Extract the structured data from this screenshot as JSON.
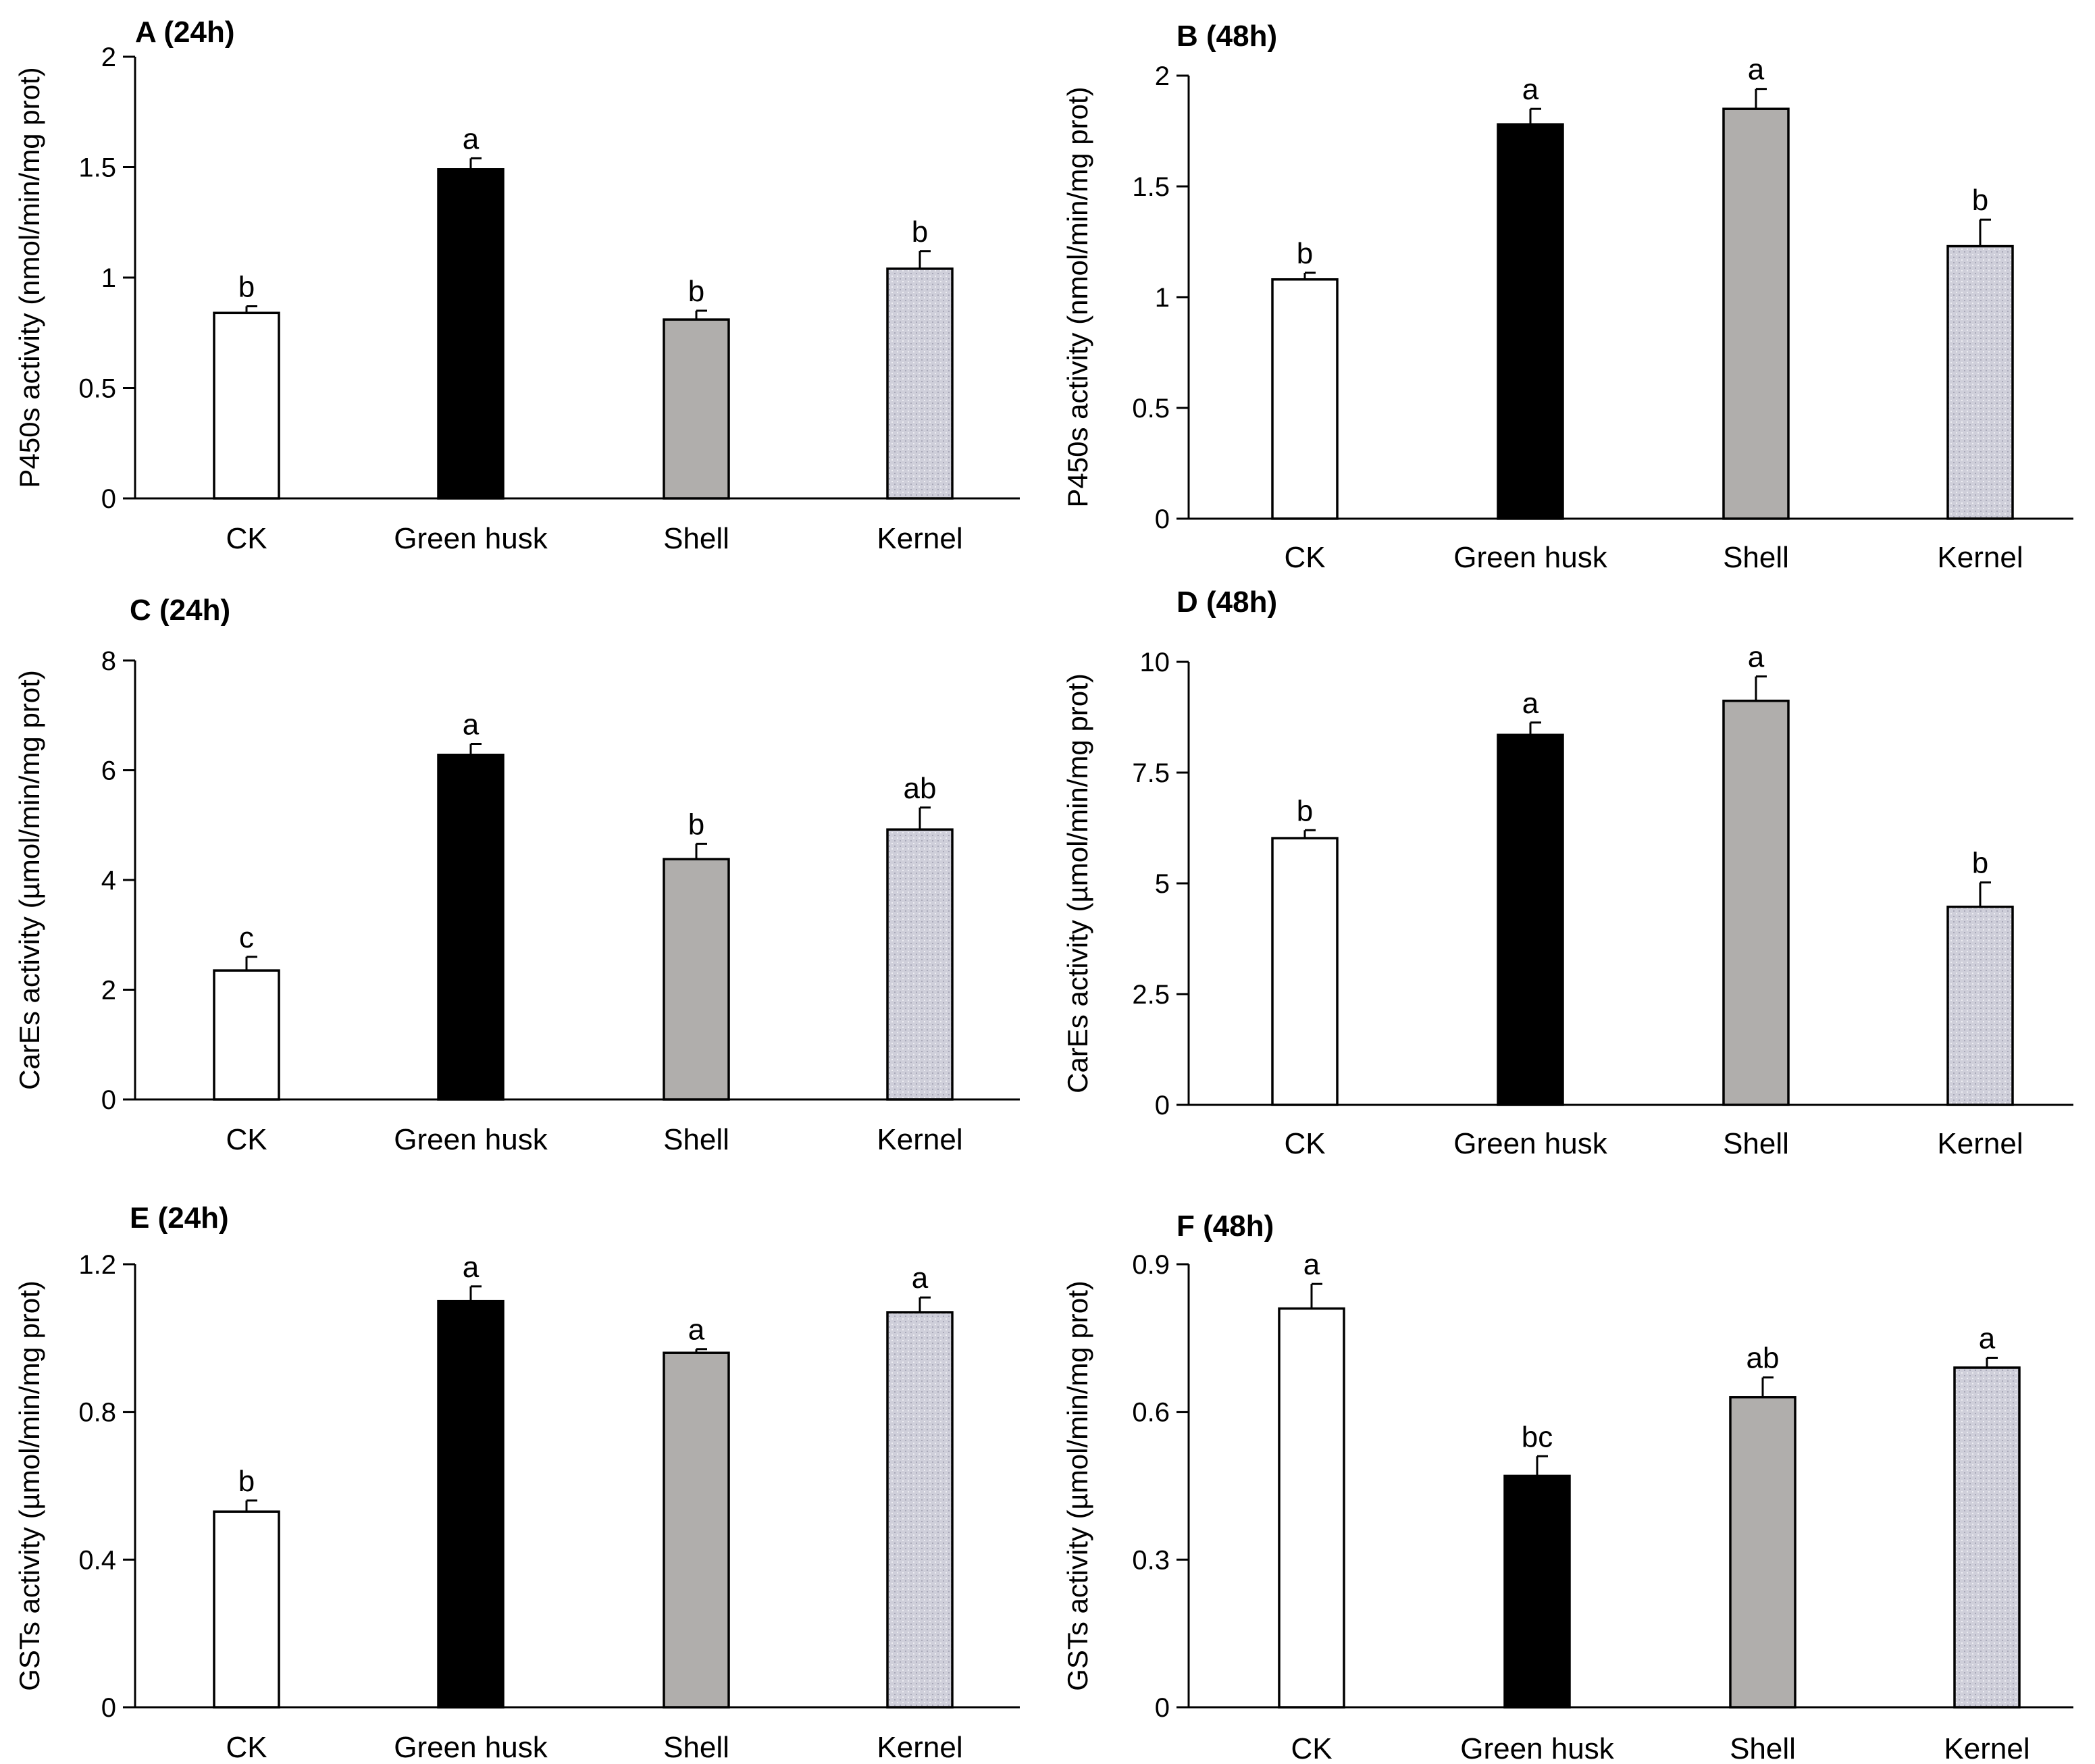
{
  "figure": {
    "colors": {
      "CK": "#ffffff",
      "Green husk": "#000000",
      "Shell": "#b0aeac",
      "Kernel": "#cfcfda"
    }
  },
  "chart_data": [
    {
      "type": "bar",
      "title": "A (24h)",
      "ylabel": "P450s activity (nmol/min/mg prot)",
      "categories": [
        "CK",
        "Green husk",
        "Shell",
        "Kernel"
      ],
      "values": [
        0.84,
        1.49,
        0.81,
        1.04
      ],
      "errors": [
        0.03,
        0.05,
        0.04,
        0.08
      ],
      "letters": [
        "b",
        "a",
        "b",
        "b"
      ],
      "ylim": [
        0,
        2
      ],
      "yticks": [
        0,
        0.5,
        1,
        1.5,
        2
      ],
      "ytick_labels": [
        "0",
        "0.5",
        "1",
        "1.5",
        "2"
      ]
    },
    {
      "type": "bar",
      "title": "B (48h)",
      "ylabel": "P450s activity  (nmol/min/mg prot)",
      "categories": [
        "CK",
        "Green husk",
        "Shell",
        "Kernel"
      ],
      "values": [
        1.08,
        1.78,
        1.85,
        1.23
      ],
      "errors": [
        0.03,
        0.07,
        0.09,
        0.12
      ],
      "letters": [
        "b",
        "a",
        "a",
        "b"
      ],
      "ylim": [
        0,
        2
      ],
      "yticks": [
        0,
        0.5,
        1,
        1.5,
        2
      ],
      "ytick_labels": [
        "0",
        "0.5",
        "1",
        "1.5",
        "2"
      ]
    },
    {
      "type": "bar",
      "title": "C  (24h)",
      "ylabel": "CarEs activity (µmol/min/mg prot)",
      "categories": [
        "CK",
        "Green husk",
        "Shell",
        "Kernel"
      ],
      "values": [
        2.35,
        6.28,
        4.38,
        4.92
      ],
      "errors": [
        0.25,
        0.2,
        0.28,
        0.4
      ],
      "letters": [
        "c",
        "a",
        "b",
        "ab"
      ],
      "ylim": [
        0,
        8
      ],
      "yticks": [
        0,
        2,
        4,
        6,
        8
      ],
      "ytick_labels": [
        "0",
        "2",
        "4",
        "6",
        "8"
      ]
    },
    {
      "type": "bar",
      "title": "D (48h)",
      "ylabel": "CarEs activity (µmol/min/mg prot)",
      "categories": [
        "CK",
        "Green husk",
        "Shell",
        "Kernel"
      ],
      "values": [
        6.02,
        8.35,
        9.12,
        4.47
      ],
      "errors": [
        0.18,
        0.28,
        0.55,
        0.55
      ],
      "letters": [
        "b",
        "a",
        "a",
        "b"
      ],
      "ylim": [
        0,
        10
      ],
      "yticks": [
        0,
        2.5,
        5,
        7.5,
        10
      ],
      "ytick_labels": [
        "0",
        "2.5",
        "5",
        "7.5",
        "10"
      ]
    },
    {
      "type": "bar",
      "title": "E (24h)",
      "ylabel": "GSTs activity (µmol/min/mg prot)",
      "categories": [
        "CK",
        "Green husk",
        "Shell",
        "Kernel"
      ],
      "values": [
        0.53,
        1.1,
        0.96,
        1.07
      ],
      "errors": [
        0.03,
        0.04,
        0.01,
        0.04
      ],
      "letters": [
        "b",
        "a",
        "a",
        "a"
      ],
      "ylim": [
        0,
        1.2
      ],
      "yticks": [
        0,
        0.4,
        0.8,
        1.2
      ],
      "ytick_labels": [
        "0",
        "0.4",
        "0.8",
        "1.2"
      ]
    },
    {
      "type": "bar",
      "title": "F (48h)",
      "ylabel": "GSTs activity (µmol/min/mg prot)",
      "categories": [
        "CK",
        "Green husk",
        "Shell",
        "Kernel"
      ],
      "values": [
        0.81,
        0.47,
        0.63,
        0.69
      ],
      "errors": [
        0.05,
        0.04,
        0.04,
        0.02
      ],
      "letters": [
        "a",
        "bc",
        "ab",
        "a"
      ],
      "ylim": [
        0,
        0.9
      ],
      "yticks": [
        0,
        0.3,
        0.6,
        0.9
      ],
      "ytick_labels": [
        "0",
        "0.3",
        "0.6",
        "0.9"
      ]
    }
  ]
}
